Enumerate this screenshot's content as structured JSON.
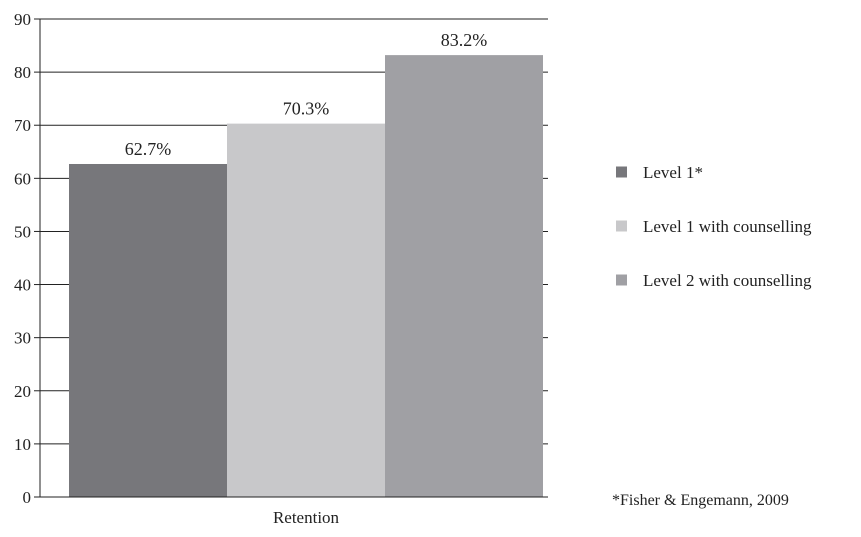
{
  "chart_data": {
    "type": "bar",
    "title": "",
    "xlabel": "",
    "ylabel": "",
    "categories": [
      "Retention"
    ],
    "ylim": [
      0,
      90
    ],
    "yticks": [
      0,
      10,
      20,
      30,
      40,
      50,
      60,
      70,
      80,
      90
    ],
    "grid": "horizontal",
    "legend_position": "right",
    "series": [
      {
        "name": "Level 1*",
        "values": [
          62.7
        ],
        "label": "62.7%",
        "color": "#77777b"
      },
      {
        "name": "Level 1 with counselling",
        "values": [
          70.3
        ],
        "label": "70.3%",
        "color": "#c8c8ca"
      },
      {
        "name": "Level 2 with counselling",
        "values": [
          83.2
        ],
        "label": "83.2%",
        "color": "#a0a0a4"
      }
    ],
    "note": "*Fisher & Engemann, 2009"
  }
}
